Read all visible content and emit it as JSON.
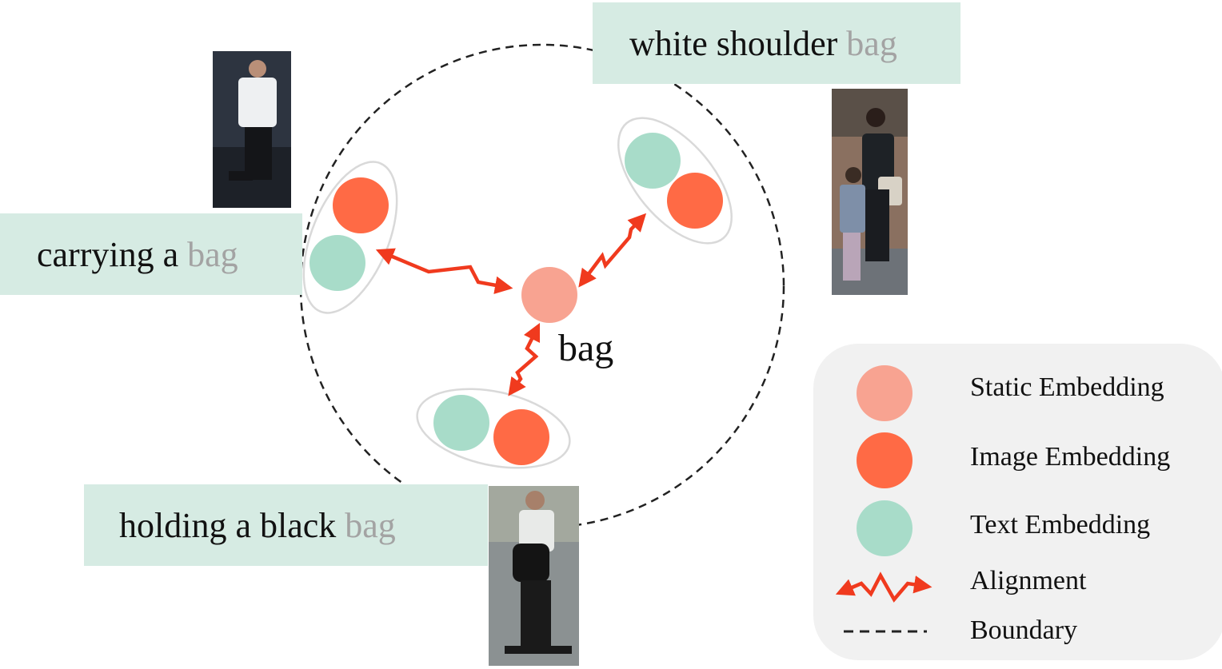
{
  "labels": {
    "carrying": {
      "prefix": "carrying a ",
      "word": "bag"
    },
    "shoulder": {
      "prefix": "white shoulder ",
      "word": "bag"
    },
    "holding": {
      "prefix": "holding a black ",
      "word": "bag"
    }
  },
  "center_word": "bag",
  "legend": {
    "static": "Static Embedding",
    "image": "Image Embedding",
    "text": "Text Embedding",
    "alignment": "Alignment",
    "boundary": "Boundary"
  },
  "colors": {
    "static": "#f8a391",
    "image": "#ff6a45",
    "text": "#a8dcc9",
    "label_bg": "#d6ebe3",
    "arrow": "#f03a1e",
    "muted_word": "#a3a3a3"
  }
}
